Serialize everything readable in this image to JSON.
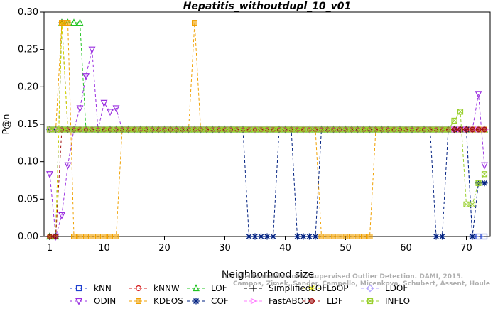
{
  "chart_data": {
    "type": "line",
    "title": "Hepatitis_withoutdupl_10_v01",
    "xlabel": "Neighborhood size",
    "ylabel": "P@n",
    "xlim": [
      1,
      73
    ],
    "ylim": [
      0,
      0.3
    ],
    "xticks": [
      1,
      10,
      20,
      30,
      40,
      50,
      60,
      70
    ],
    "yticks": [
      0.0,
      0.05,
      0.1,
      0.15,
      0.2,
      0.25,
      0.3
    ],
    "grid": false,
    "legend_position": "bottom",
    "watermark": "Campos, Zimek, Sander, Campello, Micenkova, Schubert, Assent, Houle\nOn the Evaluation of Unsupervised Outlier Detection. DAMI, 2015.",
    "series": [
      {
        "name": "kNN",
        "color": "#1f3fd0",
        "marker": "square",
        "values_desc": "constant",
        "segments": [
          [
            1,
            70,
            0.1429
          ],
          [
            71,
            73,
            0.0
          ]
        ]
      },
      {
        "name": "kNNW",
        "color": "#d62020",
        "marker": "circle",
        "segments": [
          [
            1,
            73,
            0.1429
          ]
        ]
      },
      {
        "name": "LOF",
        "color": "#22c422",
        "marker": "triangle-up",
        "points": [
          [
            1,
            0
          ],
          [
            2,
            0
          ],
          [
            3,
            0.2857
          ],
          [
            4,
            0.2857
          ],
          [
            5,
            0.2857
          ],
          [
            6,
            0.2857
          ],
          [
            7,
            0.1429
          ]
        ],
        "segments": [
          [
            7,
            73,
            0.1429
          ]
        ]
      },
      {
        "name": "SimplifiedLOF",
        "color": "#000000",
        "marker": "plus",
        "points": [
          [
            1,
            0
          ],
          [
            2,
            0
          ],
          [
            3,
            0.2857
          ],
          [
            4,
            0.1429
          ]
        ],
        "segments": [
          [
            4,
            73,
            0.1429
          ]
        ]
      },
      {
        "name": "LoOP",
        "color": "#e8e800",
        "marker": "x",
        "points": [
          [
            1,
            0
          ],
          [
            2,
            0
          ],
          [
            3,
            0.2857
          ],
          [
            4,
            0.1429
          ]
        ],
        "segments": [
          [
            4,
            73,
            0.1429
          ]
        ]
      },
      {
        "name": "LDOF",
        "color": "#b0a0ff",
        "marker": "diamond",
        "segments": [
          [
            1,
            73,
            0.1429
          ]
        ]
      },
      {
        "name": "ODIN",
        "color": "#9a2fe0",
        "marker": "triangle-down",
        "points": [
          [
            1,
            0.0833
          ],
          [
            2,
            0
          ],
          [
            3,
            0.0286
          ],
          [
            4,
            0.0952
          ],
          [
            5,
            0.1429
          ],
          [
            6,
            0.1714
          ],
          [
            7,
            0.2143
          ],
          [
            8,
            0.25
          ],
          [
            9,
            0.1429
          ],
          [
            10,
            0.1786
          ],
          [
            11,
            0.1667
          ],
          [
            12,
            0.1714
          ],
          [
            13,
            0.1429
          ],
          [
            70,
            0.1429
          ],
          [
            71,
            0.1429
          ],
          [
            72,
            0.1905
          ],
          [
            73,
            0.0952
          ]
        ]
      },
      {
        "name": "KDEOS",
        "color": "#f0a000",
        "marker": "square-filled",
        "points": [
          [
            1,
            0.1429
          ],
          [
            2,
            0.1429
          ],
          [
            3,
            0.2857
          ],
          [
            4,
            0.2857
          ],
          [
            5,
            0.0
          ],
          [
            12,
            0.0
          ],
          [
            13,
            0.1429
          ],
          [
            24,
            0.1429
          ],
          [
            25,
            0.2857
          ],
          [
            26,
            0.1429
          ],
          [
            45,
            0.1429
          ],
          [
            46,
            0
          ],
          [
            54,
            0
          ],
          [
            55,
            0.1429
          ],
          [
            73,
            0.1429
          ]
        ]
      },
      {
        "name": "COF",
        "color": "#002080",
        "marker": "asterisk",
        "points": [
          [
            1,
            0.1429
          ],
          [
            33,
            0.1429
          ],
          [
            34,
            0
          ],
          [
            38,
            0
          ],
          [
            39,
            0.1429
          ],
          [
            41,
            0.1429
          ],
          [
            42,
            0
          ],
          [
            45,
            0
          ],
          [
            46,
            0.1429
          ],
          [
            64,
            0.1429
          ],
          [
            65,
            0
          ],
          [
            66,
            0
          ],
          [
            67,
            0.1429
          ],
          [
            70,
            0.1429
          ],
          [
            71,
            0
          ],
          [
            72,
            0.0714
          ],
          [
            73,
            0.0714
          ]
        ]
      },
      {
        "name": "FastABOD",
        "color": "#ff80ff",
        "marker": "triangle-right",
        "segments": [
          [
            1,
            73,
            0.1429
          ]
        ]
      },
      {
        "name": "LDF",
        "color": "#a01010",
        "marker": "circle-filled",
        "points": [
          [
            1,
            0
          ],
          [
            2,
            0
          ],
          [
            3,
            0.1429
          ]
        ],
        "segments": [
          [
            3,
            73,
            0.1429
          ]
        ]
      },
      {
        "name": "INFLO",
        "color": "#9ad030",
        "marker": "square-x",
        "points": [
          [
            1,
            0.1429
          ],
          [
            67,
            0.1429
          ],
          [
            68,
            0.1548
          ],
          [
            69,
            0.1667
          ],
          [
            70,
            0.0429
          ],
          [
            71,
            0.0429
          ],
          [
            72,
            0.0714
          ],
          [
            73,
            0.0833
          ]
        ]
      }
    ]
  }
}
